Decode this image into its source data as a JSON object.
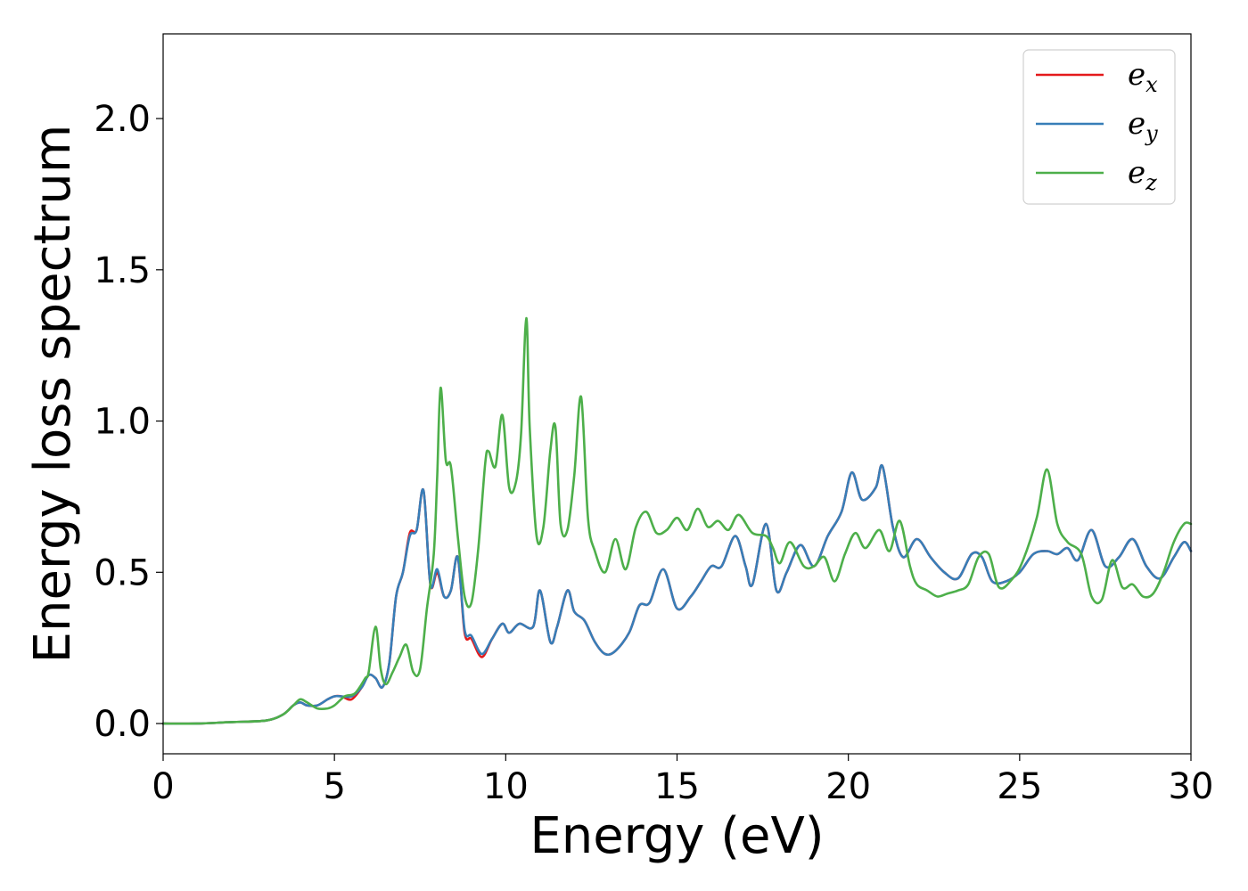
{
  "chart_data": {
    "type": "line",
    "title": "",
    "xlabel": "Energy (eV)",
    "ylabel": "Energy loss spectrum",
    "xlim": [
      0,
      30
    ],
    "ylim": [
      -0.1,
      2.28
    ],
    "xticks": [
      0,
      5,
      10,
      15,
      20,
      25,
      30
    ],
    "xtick_labels": [
      "0",
      "5",
      "10",
      "15",
      "20",
      "25",
      "30"
    ],
    "yticks": [
      0.0,
      0.5,
      1.0,
      1.5,
      2.0
    ],
    "ytick_labels": [
      "0.0",
      "0.5",
      "1.0",
      "1.5",
      "2.0"
    ],
    "grid": false,
    "legend_position": "top-right",
    "legend": [
      {
        "base": "e",
        "sub": "x",
        "color": "#e41a1c"
      },
      {
        "base": "e",
        "sub": "y",
        "color": "#377eb8"
      },
      {
        "base": "e",
        "sub": "z",
        "color": "#4daf4a"
      }
    ],
    "series": [
      {
        "color": "#e41a1c",
        "x": [
          0,
          1,
          2,
          3,
          3.5,
          3.8,
          4.0,
          4.2,
          4.5,
          4.8,
          5.0,
          5.2,
          5.5,
          5.8,
          6.0,
          6.2,
          6.4,
          6.6,
          6.8,
          7.0,
          7.2,
          7.4,
          7.6,
          7.8,
          8.0,
          8.2,
          8.4,
          8.6,
          8.8,
          9.0,
          9.3,
          9.6,
          9.9,
          10.1,
          10.4,
          10.8,
          11.0,
          11.3,
          11.5,
          11.8,
          12.0,
          12.3,
          12.6,
          12.9,
          13.2,
          13.6,
          13.9,
          14.2,
          14.6,
          15.0,
          15.4,
          15.7,
          16.0,
          16.3,
          16.7,
          17.0,
          17.2,
          17.6,
          17.9,
          18.2,
          18.6,
          19.0,
          19.4,
          19.8,
          20.1,
          20.4,
          20.8,
          21.0,
          21.3,
          21.6,
          22.0,
          22.4,
          22.8,
          23.2,
          23.6,
          23.9,
          24.2,
          24.6,
          25.0,
          25.4,
          25.8,
          26.1,
          26.4,
          26.7,
          27.1,
          27.5,
          27.9,
          28.3,
          28.7,
          29.1,
          29.5,
          29.8,
          30.0
        ],
        "y": [
          0.0,
          0.0,
          0.005,
          0.01,
          0.03,
          0.06,
          0.07,
          0.06,
          0.06,
          0.08,
          0.09,
          0.09,
          0.08,
          0.12,
          0.16,
          0.15,
          0.12,
          0.2,
          0.42,
          0.5,
          0.63,
          0.64,
          0.77,
          0.46,
          0.5,
          0.42,
          0.44,
          0.55,
          0.3,
          0.28,
          0.22,
          0.28,
          0.33,
          0.3,
          0.33,
          0.32,
          0.44,
          0.27,
          0.32,
          0.44,
          0.37,
          0.34,
          0.27,
          0.23,
          0.24,
          0.3,
          0.39,
          0.4,
          0.51,
          0.38,
          0.42,
          0.47,
          0.52,
          0.52,
          0.62,
          0.52,
          0.46,
          0.66,
          0.44,
          0.5,
          0.59,
          0.52,
          0.62,
          0.7,
          0.83,
          0.74,
          0.78,
          0.85,
          0.65,
          0.55,
          0.61,
          0.55,
          0.5,
          0.48,
          0.56,
          0.55,
          0.47,
          0.47,
          0.5,
          0.56,
          0.57,
          0.56,
          0.58,
          0.54,
          0.64,
          0.52,
          0.55,
          0.61,
          0.52,
          0.48,
          0.55,
          0.6,
          0.57
        ]
      },
      {
        "color": "#377eb8",
        "x": [
          0,
          1,
          2,
          3,
          3.5,
          3.8,
          4.0,
          4.2,
          4.5,
          4.8,
          5.0,
          5.2,
          5.5,
          5.8,
          6.0,
          6.2,
          6.4,
          6.6,
          6.8,
          7.0,
          7.2,
          7.4,
          7.6,
          7.8,
          8.0,
          8.2,
          8.4,
          8.6,
          8.8,
          9.0,
          9.3,
          9.6,
          9.9,
          10.1,
          10.4,
          10.8,
          11.0,
          11.3,
          11.5,
          11.8,
          12.0,
          12.3,
          12.6,
          12.9,
          13.2,
          13.6,
          13.9,
          14.2,
          14.6,
          15.0,
          15.4,
          15.7,
          16.0,
          16.3,
          16.7,
          17.0,
          17.2,
          17.6,
          17.9,
          18.2,
          18.6,
          19.0,
          19.4,
          19.8,
          20.1,
          20.4,
          20.8,
          21.0,
          21.3,
          21.6,
          22.0,
          22.4,
          22.8,
          23.2,
          23.6,
          23.9,
          24.2,
          24.6,
          25.0,
          25.4,
          25.8,
          26.1,
          26.4,
          26.7,
          27.1,
          27.5,
          27.9,
          28.3,
          28.7,
          29.1,
          29.5,
          29.8,
          30.0
        ],
        "y": [
          0.0,
          0.0,
          0.005,
          0.01,
          0.03,
          0.06,
          0.07,
          0.06,
          0.06,
          0.08,
          0.09,
          0.09,
          0.09,
          0.12,
          0.16,
          0.15,
          0.12,
          0.2,
          0.42,
          0.5,
          0.62,
          0.64,
          0.77,
          0.46,
          0.51,
          0.42,
          0.44,
          0.55,
          0.31,
          0.29,
          0.23,
          0.28,
          0.33,
          0.3,
          0.33,
          0.32,
          0.44,
          0.27,
          0.32,
          0.44,
          0.37,
          0.34,
          0.27,
          0.23,
          0.24,
          0.3,
          0.39,
          0.4,
          0.51,
          0.38,
          0.42,
          0.47,
          0.52,
          0.52,
          0.62,
          0.52,
          0.46,
          0.66,
          0.44,
          0.5,
          0.59,
          0.52,
          0.62,
          0.7,
          0.83,
          0.74,
          0.78,
          0.85,
          0.65,
          0.55,
          0.61,
          0.55,
          0.5,
          0.48,
          0.56,
          0.55,
          0.47,
          0.47,
          0.5,
          0.56,
          0.57,
          0.56,
          0.58,
          0.54,
          0.64,
          0.52,
          0.55,
          0.61,
          0.52,
          0.48,
          0.55,
          0.6,
          0.57
        ]
      },
      {
        "color": "#4daf4a",
        "x": [
          0,
          1,
          2,
          3,
          3.5,
          3.8,
          4.0,
          4.2,
          4.5,
          4.8,
          5.0,
          5.3,
          5.6,
          5.9,
          6.0,
          6.2,
          6.35,
          6.5,
          6.7,
          6.9,
          7.1,
          7.3,
          7.5,
          7.7,
          7.9,
          8.0,
          8.1,
          8.25,
          8.4,
          8.6,
          8.8,
          9.0,
          9.2,
          9.4,
          9.5,
          9.7,
          9.9,
          10.1,
          10.3,
          10.45,
          10.6,
          10.7,
          10.9,
          11.1,
          11.3,
          11.45,
          11.6,
          11.8,
          12.0,
          12.2,
          12.4,
          12.6,
          12.9,
          13.2,
          13.5,
          13.8,
          14.1,
          14.4,
          14.7,
          15.0,
          15.3,
          15.6,
          15.9,
          16.2,
          16.5,
          16.8,
          17.2,
          17.6,
          17.8,
          18.0,
          18.3,
          18.7,
          19.0,
          19.3,
          19.6,
          19.9,
          20.2,
          20.5,
          20.9,
          21.2,
          21.5,
          21.8,
          22.0,
          22.3,
          22.6,
          22.9,
          23.2,
          23.5,
          23.8,
          24.1,
          24.4,
          24.8,
          25.1,
          25.5,
          25.8,
          26.1,
          26.4,
          26.8,
          27.1,
          27.4,
          27.7,
          28.0,
          28.3,
          28.6,
          28.9,
          29.2,
          29.5,
          29.8,
          30.0
        ],
        "y": [
          0.0,
          0.0,
          0.005,
          0.01,
          0.03,
          0.06,
          0.08,
          0.07,
          0.05,
          0.05,
          0.06,
          0.09,
          0.1,
          0.15,
          0.17,
          0.32,
          0.18,
          0.13,
          0.17,
          0.22,
          0.26,
          0.17,
          0.18,
          0.38,
          0.56,
          0.82,
          1.11,
          0.87,
          0.85,
          0.62,
          0.42,
          0.4,
          0.58,
          0.86,
          0.9,
          0.85,
          1.02,
          0.78,
          0.8,
          0.96,
          1.34,
          0.98,
          0.62,
          0.65,
          0.9,
          0.98,
          0.66,
          0.64,
          0.82,
          1.08,
          0.68,
          0.57,
          0.5,
          0.61,
          0.51,
          0.65,
          0.7,
          0.63,
          0.64,
          0.68,
          0.64,
          0.71,
          0.65,
          0.67,
          0.64,
          0.69,
          0.63,
          0.62,
          0.58,
          0.53,
          0.6,
          0.52,
          0.52,
          0.55,
          0.47,
          0.56,
          0.63,
          0.58,
          0.64,
          0.57,
          0.67,
          0.52,
          0.46,
          0.44,
          0.42,
          0.43,
          0.44,
          0.46,
          0.55,
          0.56,
          0.45,
          0.48,
          0.54,
          0.68,
          0.84,
          0.66,
          0.6,
          0.56,
          0.42,
          0.41,
          0.54,
          0.45,
          0.46,
          0.42,
          0.43,
          0.5,
          0.6,
          0.66,
          0.66
        ]
      }
    ]
  }
}
